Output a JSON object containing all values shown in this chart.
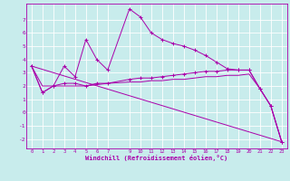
{
  "xlabel": "Windchill (Refroidissement éolien,°C)",
  "bg_color": "#c8ecec",
  "grid_color": "#ffffff",
  "line_color": "#aa00aa",
  "xlim": [
    -0.5,
    23.5
  ],
  "ylim": [
    -2.7,
    8.2
  ],
  "yticks": [
    -2,
    -1,
    0,
    1,
    2,
    3,
    4,
    5,
    6,
    7
  ],
  "xticks": [
    0,
    1,
    2,
    3,
    4,
    5,
    6,
    7,
    9,
    10,
    11,
    12,
    13,
    14,
    15,
    16,
    17,
    18,
    19,
    20,
    21,
    22,
    23
  ],
  "series": [
    {
      "x": [
        0,
        1,
        2,
        3,
        4,
        5,
        6,
        7,
        9,
        10,
        11,
        12,
        13,
        14,
        15,
        16,
        17,
        18,
        19,
        20,
        21,
        22,
        23
      ],
      "y": [
        3.5,
        1.5,
        2.0,
        3.5,
        2.7,
        5.5,
        4.0,
        3.2,
        7.8,
        7.2,
        6.0,
        5.5,
        5.2,
        5.0,
        4.7,
        4.3,
        3.8,
        3.3,
        3.2,
        3.2,
        1.8,
        0.5,
        -2.2
      ],
      "marker": true
    },
    {
      "x": [
        0,
        1,
        2,
        3,
        4,
        5,
        6,
        7,
        9,
        10,
        11,
        12,
        13,
        14,
        15,
        16,
        17,
        18,
        19,
        20,
        21,
        22,
        23
      ],
      "y": [
        3.5,
        1.5,
        2.0,
        2.2,
        2.2,
        2.0,
        2.2,
        2.2,
        2.5,
        2.6,
        2.6,
        2.7,
        2.8,
        2.9,
        3.0,
        3.1,
        3.1,
        3.2,
        3.2,
        3.2,
        1.8,
        0.5,
        -2.2
      ],
      "marker": true
    },
    {
      "x": [
        0,
        23
      ],
      "y": [
        3.5,
        -2.2
      ],
      "marker": false
    },
    {
      "x": [
        0,
        1,
        2,
        3,
        4,
        5,
        6,
        7,
        9,
        10,
        11,
        12,
        13,
        14,
        15,
        16,
        17,
        18,
        19,
        20,
        21,
        22,
        23
      ],
      "y": [
        3.5,
        2.0,
        2.0,
        2.0,
        2.0,
        2.0,
        2.1,
        2.2,
        2.3,
        2.3,
        2.4,
        2.4,
        2.5,
        2.5,
        2.6,
        2.7,
        2.7,
        2.8,
        2.8,
        2.9,
        1.8,
        0.5,
        -2.2
      ],
      "marker": false
    }
  ]
}
